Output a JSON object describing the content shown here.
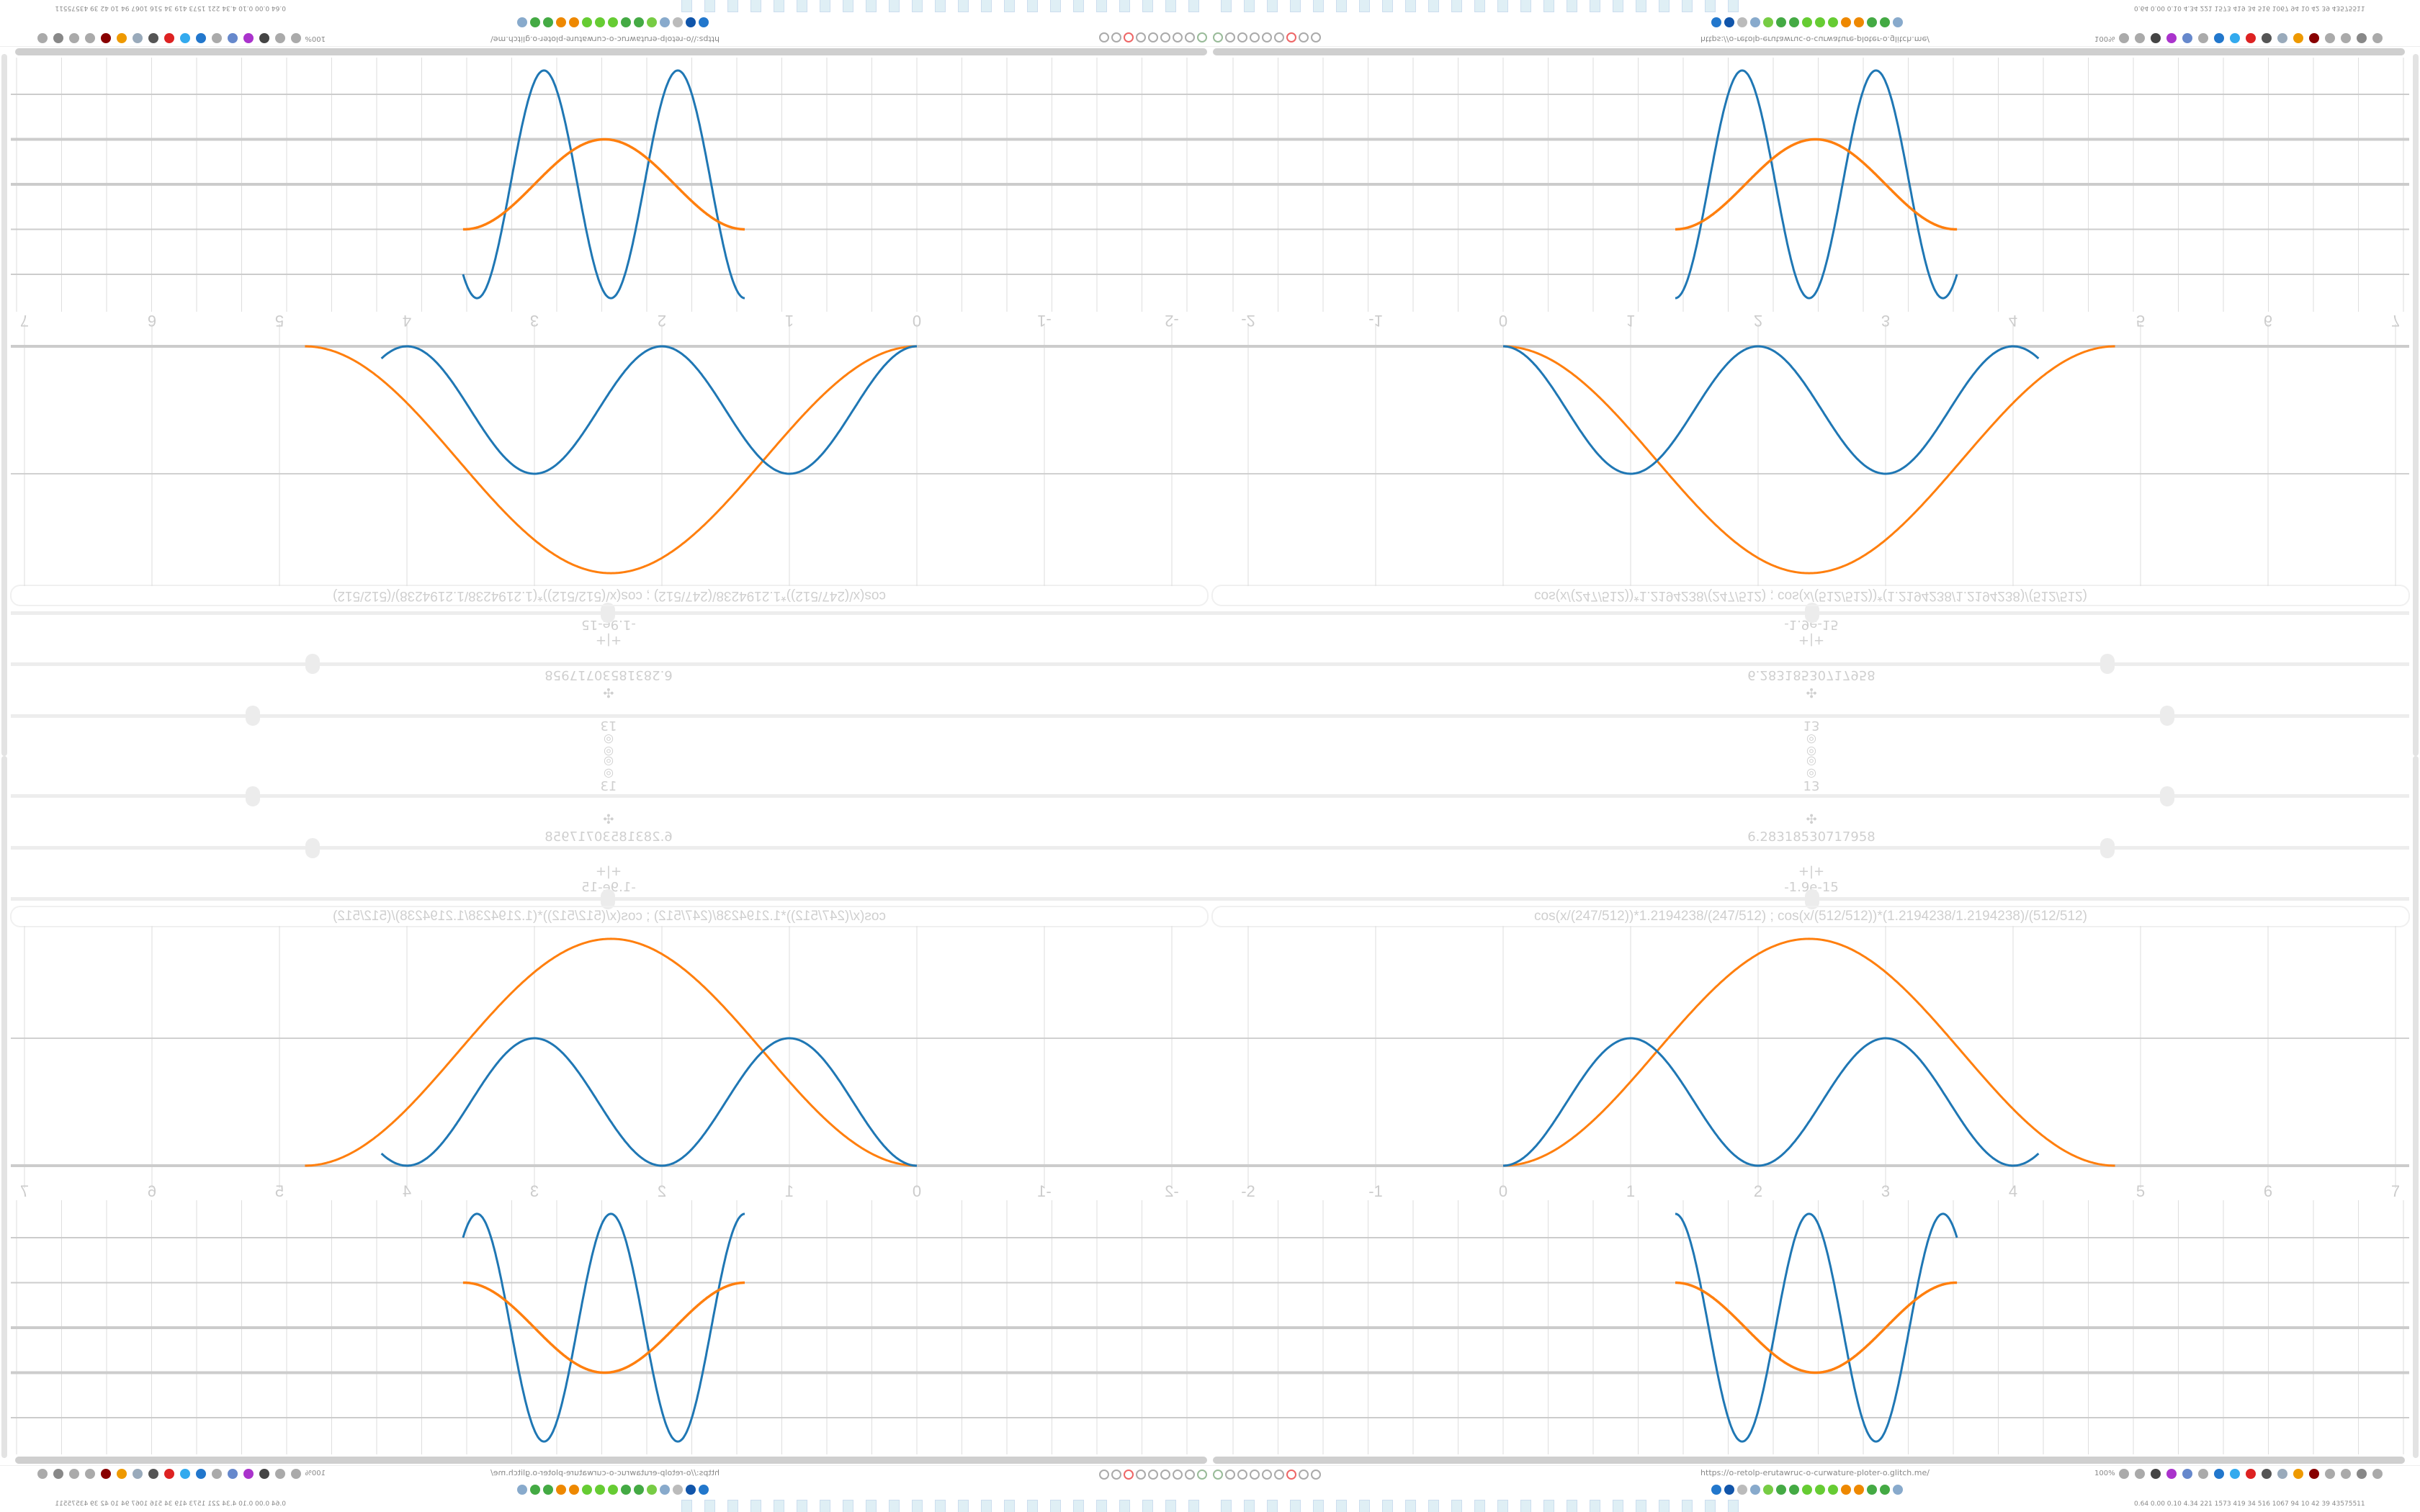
{
  "browser": {
    "url": "https://o-retolp-erutawruc-o-curwature-ploter-o.glitch.me/",
    "zoom": "100%"
  },
  "controls": {
    "icons": [
      "target-icon",
      "target-icon"
    ],
    "count_value": "13",
    "move_symbol": "✣",
    "period_value": "6.28318530717958",
    "offset_symbol": "+|+",
    "offset_value": "-1.9e-15",
    "sliders": [
      {
        "name": "count",
        "fraction": 0.797
      },
      {
        "name": "period",
        "fraction": 0.748
      },
      {
        "name": "offset",
        "fraction": 0.502
      }
    ]
  },
  "formula": "cos(x/(247/512))*1.2194238/(247/512)   ;   cos(x/(512/512))*(1.2194238/1.2194238)/(512/512)",
  "taskbar": {
    "stats": "0.64 0.00 0.10 4.34  221  1573 419   34   516 1067  94    10    42    39  43575511"
  },
  "colors": {
    "series1": "#1f77b4",
    "series2": "#ff7f0e",
    "grid": "#d0d0d0",
    "text": "#cfcfcf"
  },
  "chart_data": [
    {
      "type": "line",
      "name_hint": "function plot",
      "x_ticks": [
        "-2",
        "-1",
        "0",
        "1",
        "2",
        "3",
        "4",
        "5",
        "6",
        "7"
      ],
      "xlim": [
        -2.3,
        7.1
      ],
      "ylim": [
        -0.2,
        1.9
      ],
      "grid": true,
      "series": [
        {
          "color": "#1f77b4",
          "x_range": [
            0,
            4.2
          ],
          "peaks_at": [
            1,
            3
          ],
          "zeros_at": [
            0,
            2,
            4
          ],
          "max": 1.0
        },
        {
          "color": "#ff7f0e",
          "x_range": [
            0,
            4.8
          ],
          "peak_x": 2.4,
          "max": 1.78
        }
      ]
    },
    {
      "type": "line",
      "name_hint": "curvature plot",
      "xlim": [
        -2.3,
        7.1
      ],
      "ylim": [
        -2.9,
        2.8
      ],
      "grid": true,
      "series": [
        {
          "color": "#1f77b4",
          "x_range": [
            1.35,
            3.56
          ],
          "amplitude": 2.53,
          "period": 1.05
        },
        {
          "color": "#ff7f0e",
          "x_range": [
            1.35,
            3.56
          ],
          "amplitude": 1.0,
          "period": 2.2
        }
      ]
    }
  ]
}
